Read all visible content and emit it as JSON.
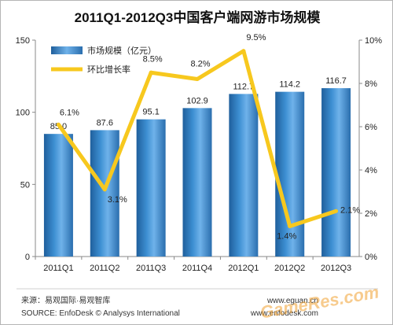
{
  "chart_data": {
    "type": "bar",
    "title": "2011Q1-2012Q3中国客户端网游市场规模",
    "categories": [
      "2011Q1",
      "2011Q2",
      "2011Q3",
      "2011Q4",
      "2012Q1",
      "2012Q2",
      "2012Q3"
    ],
    "series": [
      {
        "name": "市场规模（亿元）",
        "type": "bar",
        "axis": "left",
        "values": [
          85.0,
          87.6,
          95.1,
          102.9,
          112.7,
          114.2,
          116.7
        ],
        "labels": [
          "85.0",
          "87.6",
          "95.1",
          "102.9",
          "112.7",
          "114.2",
          "116.7"
        ],
        "color": "#2f7fc1"
      },
      {
        "name": "环比增长率",
        "type": "line",
        "axis": "right",
        "values": [
          6.1,
          3.1,
          8.5,
          8.2,
          9.5,
          1.4,
          2.1
        ],
        "labels": [
          "6.1%",
          "3.1%",
          "8.5%",
          "8.2%",
          "9.5%",
          "1.4%",
          "2.1%"
        ],
        "color": "#f7c81e"
      }
    ],
    "y_left": {
      "ylim": [
        0,
        150
      ],
      "ticks": [
        "0",
        "50",
        "100",
        "150"
      ]
    },
    "y_right": {
      "ylim": [
        0,
        10
      ],
      "ticks": [
        "0%",
        "2%",
        "4%",
        "6%",
        "8%",
        "10%"
      ]
    },
    "legend": "top-left",
    "grid": false
  },
  "footer": {
    "source_cn": "来源：易观国际·易观智库",
    "source_en": "SOURCE: EnfoDesk © Analysys International",
    "website": "www.eguan.cn",
    "website2": "www.enfodesk.com"
  },
  "watermark": "GameRes.com"
}
